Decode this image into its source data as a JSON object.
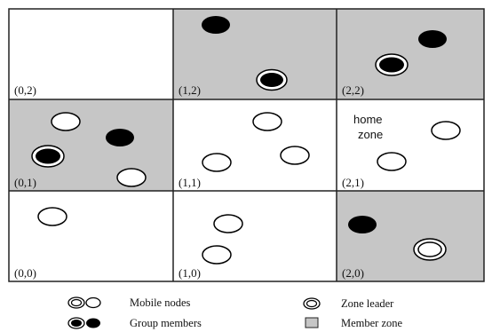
{
  "colors": {
    "member_zone_fill": "#c6c6c6",
    "plain_zone_fill": "#ffffff",
    "grid_line": "#222222",
    "node_fill_member": "#000000",
    "node_fill_mobile": "#ffffff"
  },
  "zones": [
    {
      "id": "0,2",
      "label": "(0,2)",
      "member": false
    },
    {
      "id": "1,2",
      "label": "(1,2)",
      "member": true
    },
    {
      "id": "2,2",
      "label": "(2,2)",
      "member": true
    },
    {
      "id": "0,1",
      "label": "(0,1)",
      "member": true
    },
    {
      "id": "1,1",
      "label": "(1,1)",
      "member": false
    },
    {
      "id": "2,1",
      "label": "(2,1)",
      "member": false
    },
    {
      "id": "0,0",
      "label": "(0,0)",
      "member": false
    },
    {
      "id": "1,0",
      "label": "(1,0)",
      "member": false
    },
    {
      "id": "2,0",
      "label": "(2,0)",
      "member": true
    }
  ],
  "home_zone": {
    "line1": "home",
    "line2": "zone"
  },
  "legend": {
    "mobile_nodes": "Mobile nodes",
    "group_members": "Group members",
    "zone_leader": "Zone leader",
    "member_zone": "Member zone"
  }
}
